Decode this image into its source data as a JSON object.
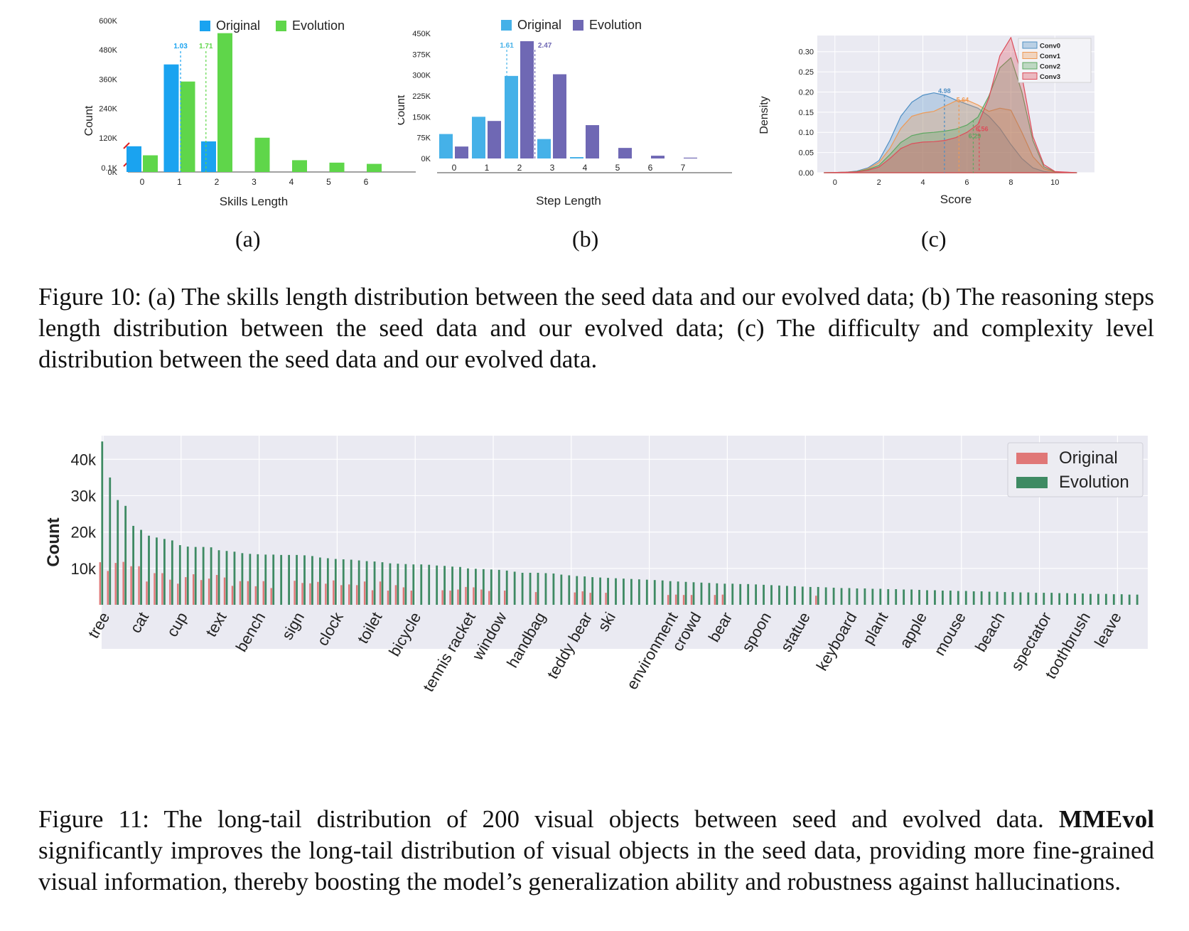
{
  "figure10": {
    "caption": "Figure 10: (a) The skills length distribution between the seed data and our evolved data; (b) The reasoning steps length distribution between the seed data and our evolved data; (c) The difficulty and complexity level distribution between the seed data and our evolved data.",
    "sublabels": [
      "(a)",
      "(b)",
      "(c)"
    ]
  },
  "figure11": {
    "caption_pre": "Figure 11: The long-tail distribution of 200 visual objects between seed and evolved data. ",
    "caption_bold": "MMEvol",
    "caption_post": " significantly improves the long-tail distribution of visual objects in the seed data, providing more fine-grained visual information, thereby boosting the model’s generalization ability and robustness against hallucinations."
  },
  "colors": {
    "a_original": "#1aa3f0",
    "a_evolution": "#5fd64a",
    "b_original": "#45b1e8",
    "b_evolution": "#6f68b4",
    "conv0": "#4f8fc4",
    "conv1": "#ee9a55",
    "conv2": "#5ca761",
    "conv3": "#dd4d5a",
    "fig11_original": "#e07777",
    "fig11_evolution": "#3e8a63"
  },
  "chart_data": [
    {
      "id": "a",
      "type": "bar",
      "xlabel": "Skills Length",
      "ylabel": "Count",
      "categories": [
        "0",
        "1",
        "2",
        "3",
        "4",
        "5",
        "6"
      ],
      "ytick_labels": [
        "0K",
        "0.1K",
        "120K",
        "240K",
        "360K",
        "480K",
        "600K"
      ],
      "broken_axis": true,
      "series": [
        {
          "name": "Original",
          "values": [
            85000,
            420000,
            105000,
            0,
            0,
            0,
            0
          ]
        },
        {
          "name": "Evolution",
          "values": [
            48000,
            350000,
            548000,
            120000,
            28000,
            18000,
            13000
          ]
        }
      ],
      "mean_markers": [
        {
          "label": "1.03",
          "x": 1.03,
          "series": "Original"
        },
        {
          "label": "1.71",
          "x": 1.71,
          "series": "Evolution"
        }
      ]
    },
    {
      "id": "b",
      "type": "bar",
      "xlabel": "Step Length",
      "ylabel": "Count",
      "categories": [
        "0",
        "1",
        "2",
        "3",
        "4",
        "5",
        "6",
        "7"
      ],
      "ytick_labels": [
        "0K",
        "75K",
        "150K",
        "225K",
        "300K",
        "375K",
        "450K"
      ],
      "ylim": [
        0,
        450000
      ],
      "series": [
        {
          "name": "Original",
          "values": [
            88000,
            150000,
            297000,
            70000,
            5000,
            0,
            0,
            0
          ]
        },
        {
          "name": "Evolution",
          "values": [
            43000,
            135000,
            422000,
            303000,
            120000,
            38000,
            10000,
            3000
          ]
        }
      ],
      "mean_markers": [
        {
          "label": "1.61",
          "x": 1.61,
          "series": "Original"
        },
        {
          "label": "2.47",
          "x": 2.47,
          "series": "Evolution"
        }
      ]
    },
    {
      "id": "c",
      "type": "area",
      "xlabel": "Score",
      "ylabel": "Density",
      "x_ticks": [
        "0",
        "2",
        "4",
        "6",
        "8",
        "10"
      ],
      "y_ticks": [
        "0.00",
        "0.05",
        "0.10",
        "0.15",
        "0.20",
        "0.25",
        "0.30"
      ],
      "xlim": [
        -0.8,
        11.8
      ],
      "ylim": [
        0,
        0.34
      ],
      "series": [
        {
          "name": "Conv0",
          "points": [
            [
              -0.5,
              0
            ],
            [
              0.5,
              0.001
            ],
            [
              1,
              0.004
            ],
            [
              1.5,
              0.012
            ],
            [
              2,
              0.03
            ],
            [
              2.5,
              0.08
            ],
            [
              3,
              0.14
            ],
            [
              3.5,
              0.175
            ],
            [
              4,
              0.192
            ],
            [
              4.5,
              0.198
            ],
            [
              5,
              0.192
            ],
            [
              5.5,
              0.18
            ],
            [
              6,
              0.17
            ],
            [
              6.5,
              0.16
            ],
            [
              7,
              0.14
            ],
            [
              7.5,
              0.11
            ],
            [
              8,
              0.07
            ],
            [
              8.5,
              0.035
            ],
            [
              9,
              0.012
            ],
            [
              9.5,
              0.003
            ],
            [
              10,
              0
            ],
            [
              11,
              0
            ]
          ]
        },
        {
          "name": "Conv1",
          "points": [
            [
              -0.5,
              0
            ],
            [
              0.5,
              0.001
            ],
            [
              1,
              0.003
            ],
            [
              1.5,
              0.01
            ],
            [
              2,
              0.025
            ],
            [
              2.5,
              0.06
            ],
            [
              3,
              0.11
            ],
            [
              3.5,
              0.14
            ],
            [
              4,
              0.148
            ],
            [
              4.5,
              0.152
            ],
            [
              5,
              0.165
            ],
            [
              5.5,
              0.178
            ],
            [
              6,
              0.18
            ],
            [
              6.5,
              0.168
            ],
            [
              7,
              0.152
            ],
            [
              7.5,
              0.16
            ],
            [
              8,
              0.155
            ],
            [
              8.5,
              0.1
            ],
            [
              9,
              0.04
            ],
            [
              9.5,
              0.01
            ],
            [
              10,
              0.001
            ],
            [
              11,
              0
            ]
          ]
        },
        {
          "name": "Conv2",
          "points": [
            [
              -0.5,
              0
            ],
            [
              0.5,
              0.001
            ],
            [
              1,
              0.003
            ],
            [
              1.5,
              0.008
            ],
            [
              2,
              0.018
            ],
            [
              2.5,
              0.045
            ],
            [
              3,
              0.075
            ],
            [
              3.5,
              0.092
            ],
            [
              4,
              0.098
            ],
            [
              4.5,
              0.1
            ],
            [
              5,
              0.103
            ],
            [
              5.5,
              0.108
            ],
            [
              6,
              0.118
            ],
            [
              6.5,
              0.138
            ],
            [
              7,
              0.19
            ],
            [
              7.5,
              0.26
            ],
            [
              8,
              0.285
            ],
            [
              8.5,
              0.2
            ],
            [
              9,
              0.08
            ],
            [
              9.5,
              0.015
            ],
            [
              10,
              0.002
            ],
            [
              11,
              0
            ]
          ]
        },
        {
          "name": "Conv3",
          "points": [
            [
              -0.5,
              0
            ],
            [
              0.5,
              0.001
            ],
            [
              1,
              0.002
            ],
            [
              1.5,
              0.006
            ],
            [
              2,
              0.014
            ],
            [
              2.5,
              0.035
            ],
            [
              3,
              0.06
            ],
            [
              3.5,
              0.072
            ],
            [
              4,
              0.076
            ],
            [
              4.5,
              0.077
            ],
            [
              5,
              0.08
            ],
            [
              5.5,
              0.087
            ],
            [
              6,
              0.1
            ],
            [
              6.5,
              0.12
            ],
            [
              7,
              0.185
            ],
            [
              7.5,
              0.29
            ],
            [
              8,
              0.335
            ],
            [
              8.5,
              0.24
            ],
            [
              9,
              0.09
            ],
            [
              9.5,
              0.02
            ],
            [
              10,
              0.003
            ],
            [
              11,
              0
            ]
          ]
        }
      ],
      "mean_markers": [
        {
          "label": "4.98",
          "x": 4.98,
          "series": "Conv0"
        },
        {
          "label": "5.64",
          "x": 5.64,
          "series": "Conv1"
        },
        {
          "label": "6.29",
          "x": 6.29,
          "series": "Conv2"
        },
        {
          "label": "6.56",
          "x": 6.56,
          "series": "Conv3"
        }
      ],
      "legend": "top-right"
    },
    {
      "id": "fig11",
      "type": "bar",
      "ylabel": "Count",
      "ytick_labels": [
        "10k",
        "20k",
        "30k",
        "40k"
      ],
      "ylim": [
        0,
        46500
      ],
      "grid": true,
      "legend": "top-right",
      "x_tick_labels": [
        {
          "label": "tree",
          "index": 0
        },
        {
          "label": "cat",
          "index": 5
        },
        {
          "label": "cup",
          "index": 10
        },
        {
          "label": "text",
          "index": 15
        },
        {
          "label": "bench",
          "index": 20
        },
        {
          "label": "sign",
          "index": 25
        },
        {
          "label": "clock",
          "index": 30
        },
        {
          "label": "toilet",
          "index": 35
        },
        {
          "label": "bicycle",
          "index": 40
        },
        {
          "label": "tennis racket",
          "index": 47
        },
        {
          "label": "window",
          "index": 51
        },
        {
          "label": "handbag",
          "index": 56
        },
        {
          "label": "teddy bear",
          "index": 62
        },
        {
          "label": "ski",
          "index": 65
        },
        {
          "label": "environment",
          "index": 73
        },
        {
          "label": "crowd",
          "index": 76
        },
        {
          "label": "bear",
          "index": 80
        },
        {
          "label": "spoon",
          "index": 85
        },
        {
          "label": "statue",
          "index": 90
        },
        {
          "label": "keyboard",
          "index": 96
        },
        {
          "label": "plant",
          "index": 100
        },
        {
          "label": "apple",
          "index": 105
        },
        {
          "label": "mouse",
          "index": 110
        },
        {
          "label": "beach",
          "index": 115
        },
        {
          "label": "spectator",
          "index": 121
        },
        {
          "label": "toothbrush",
          "index": 126
        },
        {
          "label": "leave",
          "index": 130
        }
      ],
      "series": [
        {
          "name": "Original",
          "values": [
            11700,
            9300,
            11500,
            11800,
            10600,
            10600,
            6400,
            8700,
            8700,
            6900,
            5800,
            7600,
            8400,
            6800,
            7200,
            8200,
            7500,
            5200,
            6500,
            6500,
            5100,
            6500,
            4600,
            0,
            0,
            6600,
            6000,
            5900,
            6300,
            5800,
            6700,
            5400,
            5600,
            5400,
            6400,
            4000,
            6400,
            3900,
            5400,
            4800,
            3900,
            0,
            0,
            0,
            4000,
            3900,
            4200,
            4900,
            4800,
            4200,
            3800,
            0,
            3900,
            0,
            0,
            0,
            3500,
            0,
            0,
            0,
            0,
            3400,
            3700,
            3300,
            0,
            3300,
            0,
            0,
            0,
            0,
            0,
            0,
            0,
            2700,
            2800,
            2700,
            2700,
            0,
            0,
            2700,
            2800,
            0,
            0,
            0,
            0,
            0,
            0,
            0,
            0,
            0,
            0,
            0,
            2500,
            0,
            0,
            0,
            0,
            0,
            0,
            0,
            0,
            0,
            0,
            0,
            0,
            0,
            0,
            0,
            0,
            0,
            0,
            0,
            0,
            0,
            0,
            0,
            0,
            0,
            0,
            0,
            0,
            0,
            0,
            0,
            0,
            0,
            0,
            0,
            0,
            0,
            0,
            0,
            0
          ]
        },
        {
          "name": "Evolution",
          "values": [
            44900,
            35000,
            28800,
            27200,
            21700,
            20600,
            19000,
            18500,
            18100,
            17700,
            16400,
            16000,
            15900,
            15900,
            15800,
            15000,
            14800,
            14600,
            14200,
            14000,
            13900,
            13800,
            13800,
            13700,
            13700,
            13700,
            13600,
            13400,
            13000,
            12800,
            12600,
            12500,
            12400,
            12200,
            12000,
            11900,
            11700,
            11400,
            11300,
            11200,
            11100,
            11100,
            11000,
            10800,
            10700,
            10500,
            10400,
            10000,
            9900,
            9800,
            9700,
            9600,
            9400,
            9100,
            8800,
            8800,
            8800,
            8700,
            8600,
            8300,
            8100,
            7900,
            7800,
            7600,
            7500,
            7400,
            7300,
            7200,
            7100,
            7000,
            6900,
            6800,
            6700,
            6500,
            6400,
            6300,
            6200,
            6100,
            6000,
            5900,
            5800,
            5800,
            5700,
            5700,
            5600,
            5500,
            5400,
            5300,
            5200,
            5100,
            5000,
            4900,
            4900,
            4800,
            4700,
            4600,
            4600,
            4500,
            4500,
            4400,
            4400,
            4300,
            4300,
            4200,
            4200,
            4100,
            4000,
            4000,
            3900,
            3900,
            3800,
            3800,
            3700,
            3700,
            3600,
            3600,
            3500,
            3500,
            3400,
            3400,
            3300,
            3300,
            3300,
            3200,
            3200,
            3100,
            3100,
            3000,
            3000,
            3000,
            2900,
            2900,
            2800,
            2800
          ]
        }
      ]
    }
  ]
}
